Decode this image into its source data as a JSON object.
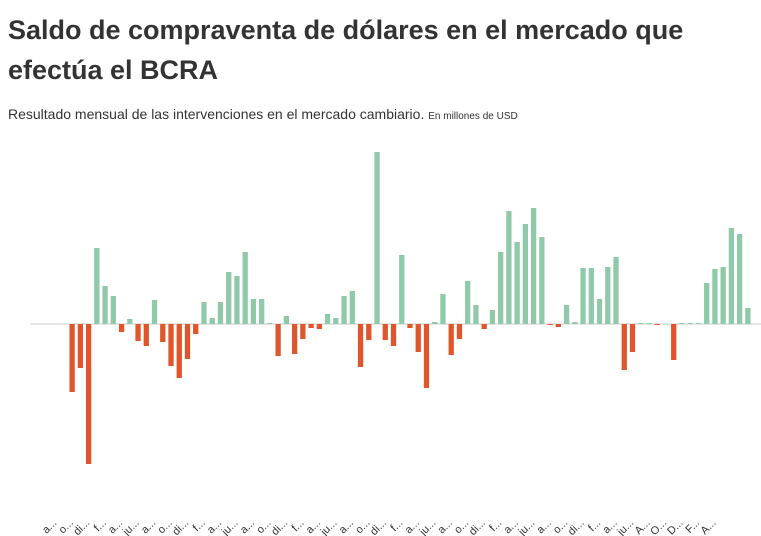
{
  "chart_data": {
    "type": "bar",
    "title": "Saldo de compraventa de dólares en el mercado que efectúa el BCRA",
    "subtitle": "Resultado mensual de las intervenciones en el mercado cambiario.",
    "unit_note": "En millones de USD",
    "categories": [
      "a...",
      null,
      "o...",
      null,
      "di...",
      null,
      "f...",
      null,
      "a...",
      null,
      "ju...",
      null,
      "a...",
      null,
      "o...",
      null,
      "di...",
      null,
      "f...",
      null,
      "a...",
      null,
      "ju...",
      null,
      "a...",
      null,
      "o...",
      null,
      "di...",
      null,
      "f...",
      null,
      "a...",
      null,
      "ju...",
      null,
      "a...",
      null,
      "o...",
      null,
      "di...",
      null,
      "f...",
      null,
      "a...",
      null,
      "ju...",
      null,
      "a...",
      null,
      "o...",
      null,
      "di...",
      null,
      "f...",
      null,
      "a...",
      null,
      "ju...",
      null,
      "a...",
      null,
      "o...",
      null,
      "di...",
      null,
      "f...",
      null,
      "a...",
      null,
      "ju...",
      null,
      "A...",
      null,
      "O...",
      null,
      "D...",
      null,
      "F...",
      null,
      "A...",
      null,
      null
    ],
    "values": [
      -1360,
      -880,
      -2800,
      1520,
      760,
      560,
      -160,
      100,
      -340,
      -440,
      480,
      -360,
      -840,
      -1080,
      -700,
      -200,
      440,
      120,
      440,
      1040,
      960,
      1440,
      500,
      500,
      20,
      -640,
      160,
      -600,
      -300,
      -80,
      -100,
      200,
      120,
      560,
      660,
      -860,
      -320,
      3440,
      -320,
      -440,
      1380,
      -80,
      -560,
      -1280,
      40,
      600,
      -620,
      -300,
      860,
      380,
      -100,
      280,
      1440,
      2260,
      1640,
      2000,
      2320,
      1740,
      -20,
      -60,
      380,
      40,
      1120,
      1120,
      500,
      1140,
      1340,
      -920,
      -560,
      20,
      20,
      -20,
      0,
      -720,
      20,
      20,
      20,
      820,
      1100,
      1140,
      1920,
      1800,
      320
    ],
    "positive_color": "#8fc9a9",
    "negative_color": "#e0552b",
    "ylim": [
      -3520,
      3440
    ]
  }
}
